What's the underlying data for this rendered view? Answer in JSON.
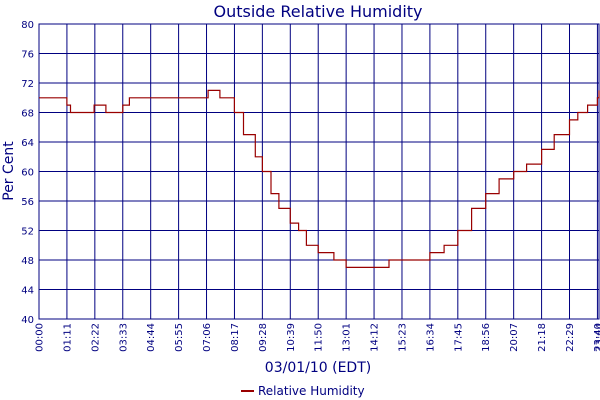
{
  "chart_data": {
    "type": "line",
    "title": "Outside Relative Humidity",
    "xlabel": "03/01/10 (EDT)",
    "ylabel": "Per Cent",
    "ylim": [
      40,
      80
    ],
    "yticks": [
      "40",
      "44",
      "48",
      "52",
      "56",
      "60",
      "64",
      "68",
      "72",
      "76",
      "80"
    ],
    "xticks": [
      "00:00",
      "01:11",
      "02:22",
      "03:33",
      "04:44",
      "05:55",
      "07:06",
      "08:17",
      "09:28",
      "10:39",
      "11:50",
      "13:01",
      "14:12",
      "15:23",
      "16:34",
      "17:45",
      "18:56",
      "20:07",
      "21:18",
      "22:29",
      "23:40",
      "23:44"
    ],
    "grid": true,
    "legend_position": "bottom",
    "series": [
      {
        "name": "Relative Humidity",
        "color": "#990000",
        "x": [
          "00:00",
          "00:50",
          "01:11",
          "01:20",
          "02:20",
          "02:50",
          "03:33",
          "03:50",
          "07:06",
          "07:10",
          "07:40",
          "08:17",
          "08:40",
          "09:10",
          "09:28",
          "09:50",
          "10:10",
          "10:39",
          "11:00",
          "11:20",
          "11:50",
          "12:30",
          "13:01",
          "13:40",
          "14:12",
          "14:50",
          "15:23",
          "16:00",
          "16:34",
          "17:10",
          "17:45",
          "18:20",
          "18:56",
          "19:30",
          "20:07",
          "20:40",
          "21:18",
          "21:50",
          "22:29",
          "22:50",
          "23:15",
          "23:40",
          "23:44"
        ],
        "y": [
          70,
          70,
          69,
          68,
          69,
          68,
          69,
          70,
          70,
          71,
          70,
          68,
          65,
          62,
          60,
          57,
          55,
          53,
          52,
          50,
          49,
          48,
          47,
          47,
          47,
          48,
          48,
          48,
          49,
          50,
          52,
          55,
          57,
          59,
          60,
          61,
          63,
          65,
          67,
          68,
          69,
          70,
          71
        ]
      }
    ]
  }
}
